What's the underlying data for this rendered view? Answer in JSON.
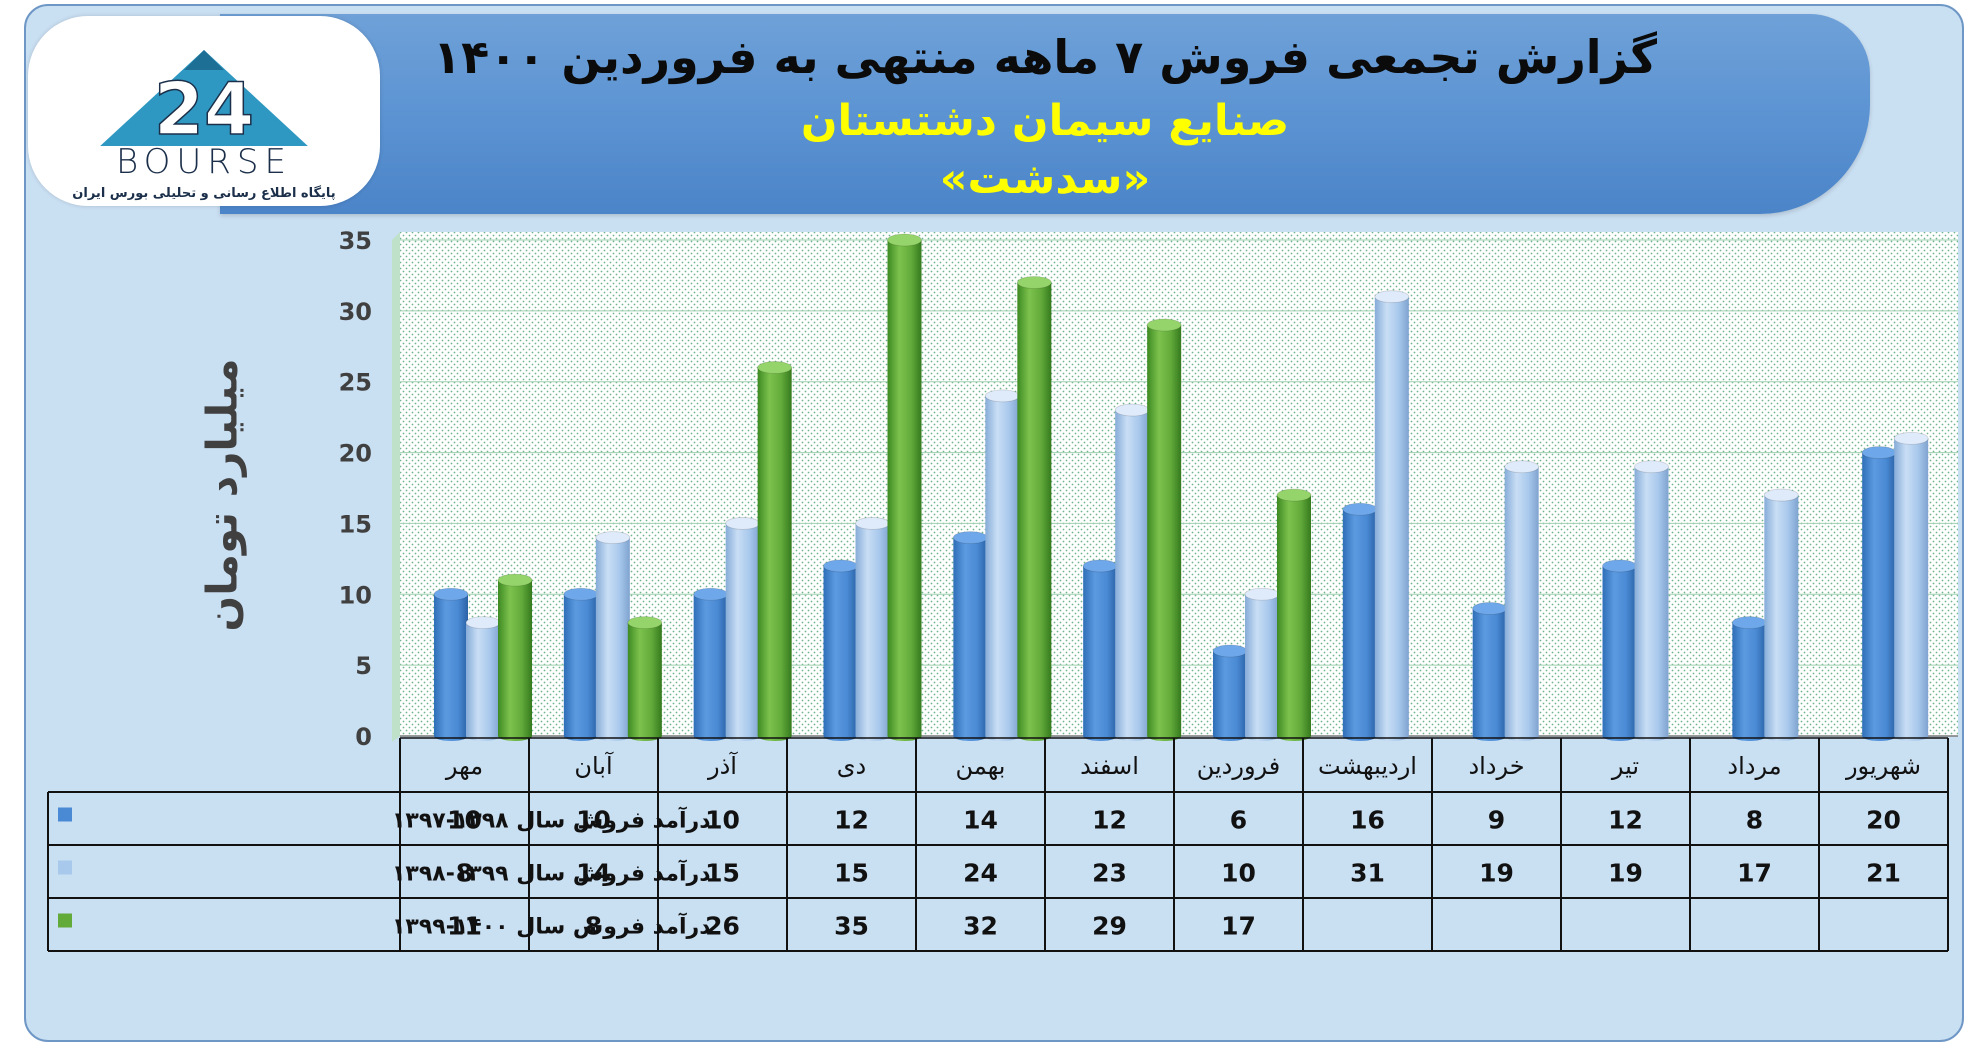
{
  "header": {
    "title": "گزارش تجمعی فروش ۷ ماهه منتهی به فروردین ۱۴۰۰",
    "subtitle": "صنایع سیمان دشتستان",
    "ticker": "«سدشت»"
  },
  "logo": {
    "text": "BOURSE",
    "tagline": "پایگاه اطلاع رسانی و تحلیلی بورس ایران"
  },
  "colors": {
    "series1": "#4a8ad4",
    "series2": "#a8c8ec",
    "series3": "#62aa3a",
    "background": "#c9dff2",
    "banner": "#5a92d2"
  },
  "chart_data": {
    "type": "bar",
    "ylabel": "میلیارد تومان",
    "ylim": [
      0,
      35
    ],
    "yticks": [
      0,
      5,
      10,
      15,
      20,
      25,
      30,
      35
    ],
    "grid": true,
    "categories": [
      "مهر",
      "آبان",
      "آذر",
      "دی",
      "بهمن",
      "اسفند",
      "فروردین",
      "اردیبهشت",
      "خرداد",
      "تیر",
      "مرداد",
      "شهریور"
    ],
    "series": [
      {
        "name": "درآمد فروش سال ۱۳۹۸-۱۳۹۷",
        "values": [
          10,
          10,
          10,
          12,
          14,
          12,
          6,
          16,
          9,
          12,
          8,
          20
        ]
      },
      {
        "name": "درآمد فروش سال ۱۳۹۹-۱۳۹۸",
        "values": [
          8,
          14,
          15,
          15,
          24,
          23,
          10,
          31,
          19,
          19,
          17,
          21
        ]
      },
      {
        "name": "درآمد فروش سال ۱۴۰۰-۱۳۹۹",
        "values": [
          11,
          8,
          26,
          35,
          32,
          29,
          17,
          null,
          null,
          null,
          null,
          null
        ]
      }
    ]
  }
}
